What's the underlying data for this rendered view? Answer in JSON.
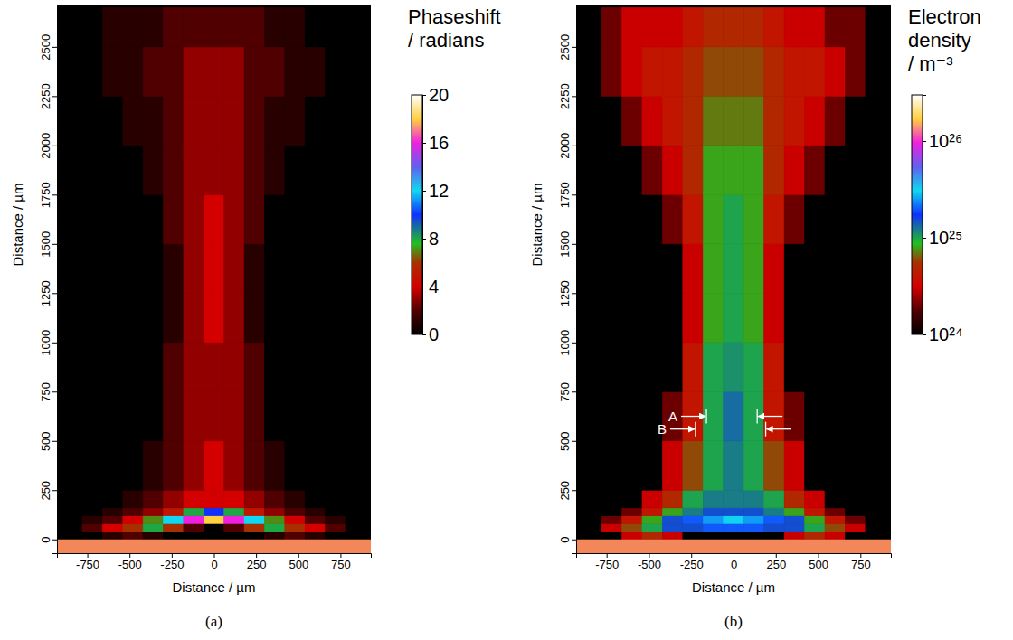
{
  "chart_data": [
    {
      "type": "heatmap",
      "caption": "(a)",
      "xlabel": "Distance / µm",
      "ylabel": "Distance / µm",
      "xlim": [
        -930,
        930
      ],
      "ylim": [
        -70,
        2715
      ],
      "xticks": [
        -750,
        -500,
        -250,
        0,
        250,
        500,
        750
      ],
      "yticks": [
        0,
        250,
        500,
        750,
        1000,
        1250,
        1500,
        1750,
        2000,
        2250,
        2500
      ],
      "x_edges": [
        -900,
        -780,
        -660,
        -540,
        -420,
        -300,
        -180,
        -60,
        60,
        180,
        300,
        420,
        540,
        660,
        780,
        900
      ],
      "y_edges": [
        0,
        40,
        80,
        120,
        160,
        250,
        500,
        750,
        1000,
        1250,
        1500,
        1750,
        2000,
        2250,
        2500,
        2700
      ],
      "cells": [
        [
          0,
          0,
          1,
          2,
          1,
          0,
          0,
          0,
          0,
          0,
          1,
          2,
          1,
          0,
          0
        ],
        [
          0,
          2,
          4,
          6,
          8,
          6,
          2,
          0,
          2,
          6,
          8,
          6,
          4,
          2,
          0
        ],
        [
          0,
          1,
          2,
          4,
          7,
          12,
          16,
          18,
          16,
          12,
          7,
          4,
          2,
          1,
          0
        ],
        [
          0,
          0,
          1,
          2,
          3,
          5,
          8,
          10,
          8,
          5,
          3,
          2,
          1,
          0,
          0
        ],
        [
          0,
          0,
          0,
          1,
          2,
          3,
          4,
          4,
          4,
          3,
          2,
          1,
          0,
          0,
          0
        ],
        [
          0,
          0,
          0,
          0,
          1,
          2,
          3,
          4,
          3,
          2,
          1,
          0,
          0,
          0,
          0
        ],
        [
          0,
          0,
          0,
          0,
          0,
          2,
          3,
          3,
          3,
          2,
          0,
          0,
          0,
          0,
          0
        ],
        [
          0,
          0,
          0,
          0,
          0,
          2,
          3,
          3,
          3,
          2,
          0,
          0,
          0,
          0,
          0
        ],
        [
          0,
          0,
          0,
          0,
          0,
          1,
          3,
          4,
          3,
          1,
          0,
          0,
          0,
          0,
          0
        ],
        [
          0,
          0,
          0,
          0,
          0,
          1,
          3,
          4,
          3,
          1,
          0,
          0,
          0,
          0,
          0
        ],
        [
          0,
          0,
          0,
          0,
          0,
          2,
          3,
          4,
          3,
          2,
          0,
          0,
          0,
          0,
          0
        ],
        [
          0,
          0,
          0,
          0,
          1,
          2,
          3,
          3,
          3,
          2,
          1,
          0,
          0,
          0,
          0
        ],
        [
          0,
          0,
          0,
          1,
          1,
          2,
          3,
          3,
          3,
          2,
          1,
          1,
          0,
          0,
          0
        ],
        [
          0,
          0,
          1,
          1,
          2,
          2,
          3,
          3,
          3,
          2,
          2,
          1,
          1,
          0,
          0
        ],
        [
          0,
          0,
          1,
          1,
          1,
          2,
          2,
          2,
          2,
          2,
          1,
          1,
          0,
          0,
          0
        ]
      ],
      "colorbar": {
        "title": "Phaseshift / radians",
        "lim": [
          0,
          20
        ],
        "ticks": [
          0,
          4,
          8,
          12,
          16,
          20
        ]
      }
    },
    {
      "type": "heatmap",
      "caption": "(b)",
      "xlabel": "Distance / µm",
      "ylabel": "Distance / µm",
      "xlim": [
        -930,
        930
      ],
      "ylim": [
        -70,
        2715
      ],
      "xticks": [
        -750,
        -500,
        -250,
        0,
        250,
        500,
        750
      ],
      "yticks": [
        0,
        250,
        500,
        750,
        1000,
        1250,
        1500,
        1750,
        2000,
        2250,
        2500
      ],
      "x_edges": [
        -900,
        -780,
        -660,
        -540,
        -420,
        -300,
        -180,
        -60,
        60,
        180,
        300,
        420,
        540,
        660,
        780,
        900
      ],
      "y_edges": [
        0,
        40,
        80,
        120,
        160,
        250,
        500,
        750,
        1000,
        1250,
        1500,
        1750,
        2000,
        2250,
        2500,
        2700
      ],
      "cells": [
        [
          1e+24,
          1e+24,
          3e+24,
          5e+24,
          3e+24,
          1e+24,
          1e+24,
          1e+24,
          1e+24,
          1e+24,
          3e+24,
          5e+24,
          3e+24,
          1e+24,
          1e+24
        ],
        [
          1e+24,
          3e+24,
          6e+24,
          1e+25,
          1.5e+25,
          1.5e+25,
          2e+25,
          2e+25,
          2e+25,
          1.5e+25,
          1.5e+25,
          1e+25,
          6e+24,
          3e+24,
          1e+24
        ],
        [
          1e+24,
          2e+24,
          4e+24,
          8e+24,
          1.5e+25,
          2e+25,
          2.5e+25,
          3e+25,
          2.5e+25,
          2e+25,
          1.5e+25,
          8e+24,
          4e+24,
          2e+24,
          1e+24
        ],
        [
          1e+24,
          1e+24,
          2e+24,
          4e+24,
          8e+24,
          1.2e+25,
          1.5e+25,
          1.5e+25,
          1.5e+25,
          1.2e+25,
          8e+24,
          4e+24,
          2e+24,
          1e+24,
          1e+24
        ],
        [
          1e+24,
          1e+24,
          1e+24,
          3e+24,
          5e+24,
          1e+25,
          1.2e+25,
          1.2e+25,
          1.2e+25,
          1e+25,
          5e+24,
          3e+24,
          1e+24,
          1e+24,
          1e+24
        ],
        [
          1e+24,
          1e+24,
          1e+24,
          1e+24,
          3e+24,
          6e+24,
          1e+25,
          1.2e+25,
          1e+25,
          6e+24,
          3e+24,
          1e+24,
          1e+24,
          1e+24,
          1e+24
        ],
        [
          1e+24,
          1e+24,
          1e+24,
          1e+24,
          2e+24,
          4e+24,
          1e+25,
          1.3e+25,
          1e+25,
          4e+24,
          2e+24,
          1e+24,
          1e+24,
          1e+24,
          1e+24
        ],
        [
          1e+24,
          1e+24,
          1e+24,
          1e+24,
          1e+24,
          4e+24,
          1e+25,
          1.1e+25,
          1e+25,
          4e+24,
          1e+24,
          1e+24,
          1e+24,
          1e+24,
          1e+24
        ],
        [
          1e+24,
          1e+24,
          1e+24,
          1e+24,
          1e+24,
          3e+24,
          8e+24,
          1e+25,
          8e+24,
          3e+24,
          1e+24,
          1e+24,
          1e+24,
          1e+24,
          1e+24
        ],
        [
          1e+24,
          1e+24,
          1e+24,
          1e+24,
          1e+24,
          3e+24,
          8e+24,
          1e+25,
          8e+24,
          3e+24,
          1e+24,
          1e+24,
          1e+24,
          1e+24,
          1e+24
        ],
        [
          1e+24,
          1e+24,
          1e+24,
          1e+24,
          2e+24,
          4e+24,
          8e+24,
          1e+25,
          8e+24,
          4e+24,
          2e+24,
          1e+24,
          1e+24,
          1e+24,
          1e+24
        ],
        [
          1e+24,
          1e+24,
          1e+24,
          2e+24,
          3e+24,
          5e+24,
          8e+24,
          8e+24,
          8e+24,
          5e+24,
          3e+24,
          2e+24,
          1e+24,
          1e+24,
          1e+24
        ],
        [
          1e+24,
          1e+24,
          2e+24,
          3e+24,
          4e+24,
          5e+24,
          7e+24,
          7e+24,
          7e+24,
          5e+24,
          4e+24,
          3e+24,
          2e+24,
          1e+24,
          1e+24
        ],
        [
          1e+24,
          2e+24,
          3e+24,
          4e+24,
          4e+24,
          5e+24,
          6e+24,
          6e+24,
          6e+24,
          5e+24,
          4e+24,
          4e+24,
          3e+24,
          2e+24,
          1e+24
        ],
        [
          1e+24,
          2e+24,
          3e+24,
          3e+24,
          3e+24,
          4e+24,
          5e+24,
          5e+24,
          5e+24,
          4e+24,
          3e+24,
          3e+24,
          2e+24,
          2e+24,
          1e+24
        ]
      ],
      "colorbar": {
        "title": "Electron density / m⁻³",
        "lim": [
          1e+24,
          3e+26
        ],
        "log": true,
        "ticks": [
          {
            "value": 1e+24,
            "label": "10²⁴"
          },
          {
            "value": 1e+25,
            "label": "10²⁵"
          },
          {
            "value": 1e+26,
            "label": "10²⁶"
          }
        ]
      },
      "annotations": [
        {
          "text": "A",
          "y": 625,
          "x": [
            -160,
            140
          ]
        },
        {
          "text": "B",
          "y": 560,
          "x": [
            -225,
            190
          ]
        }
      ]
    }
  ]
}
